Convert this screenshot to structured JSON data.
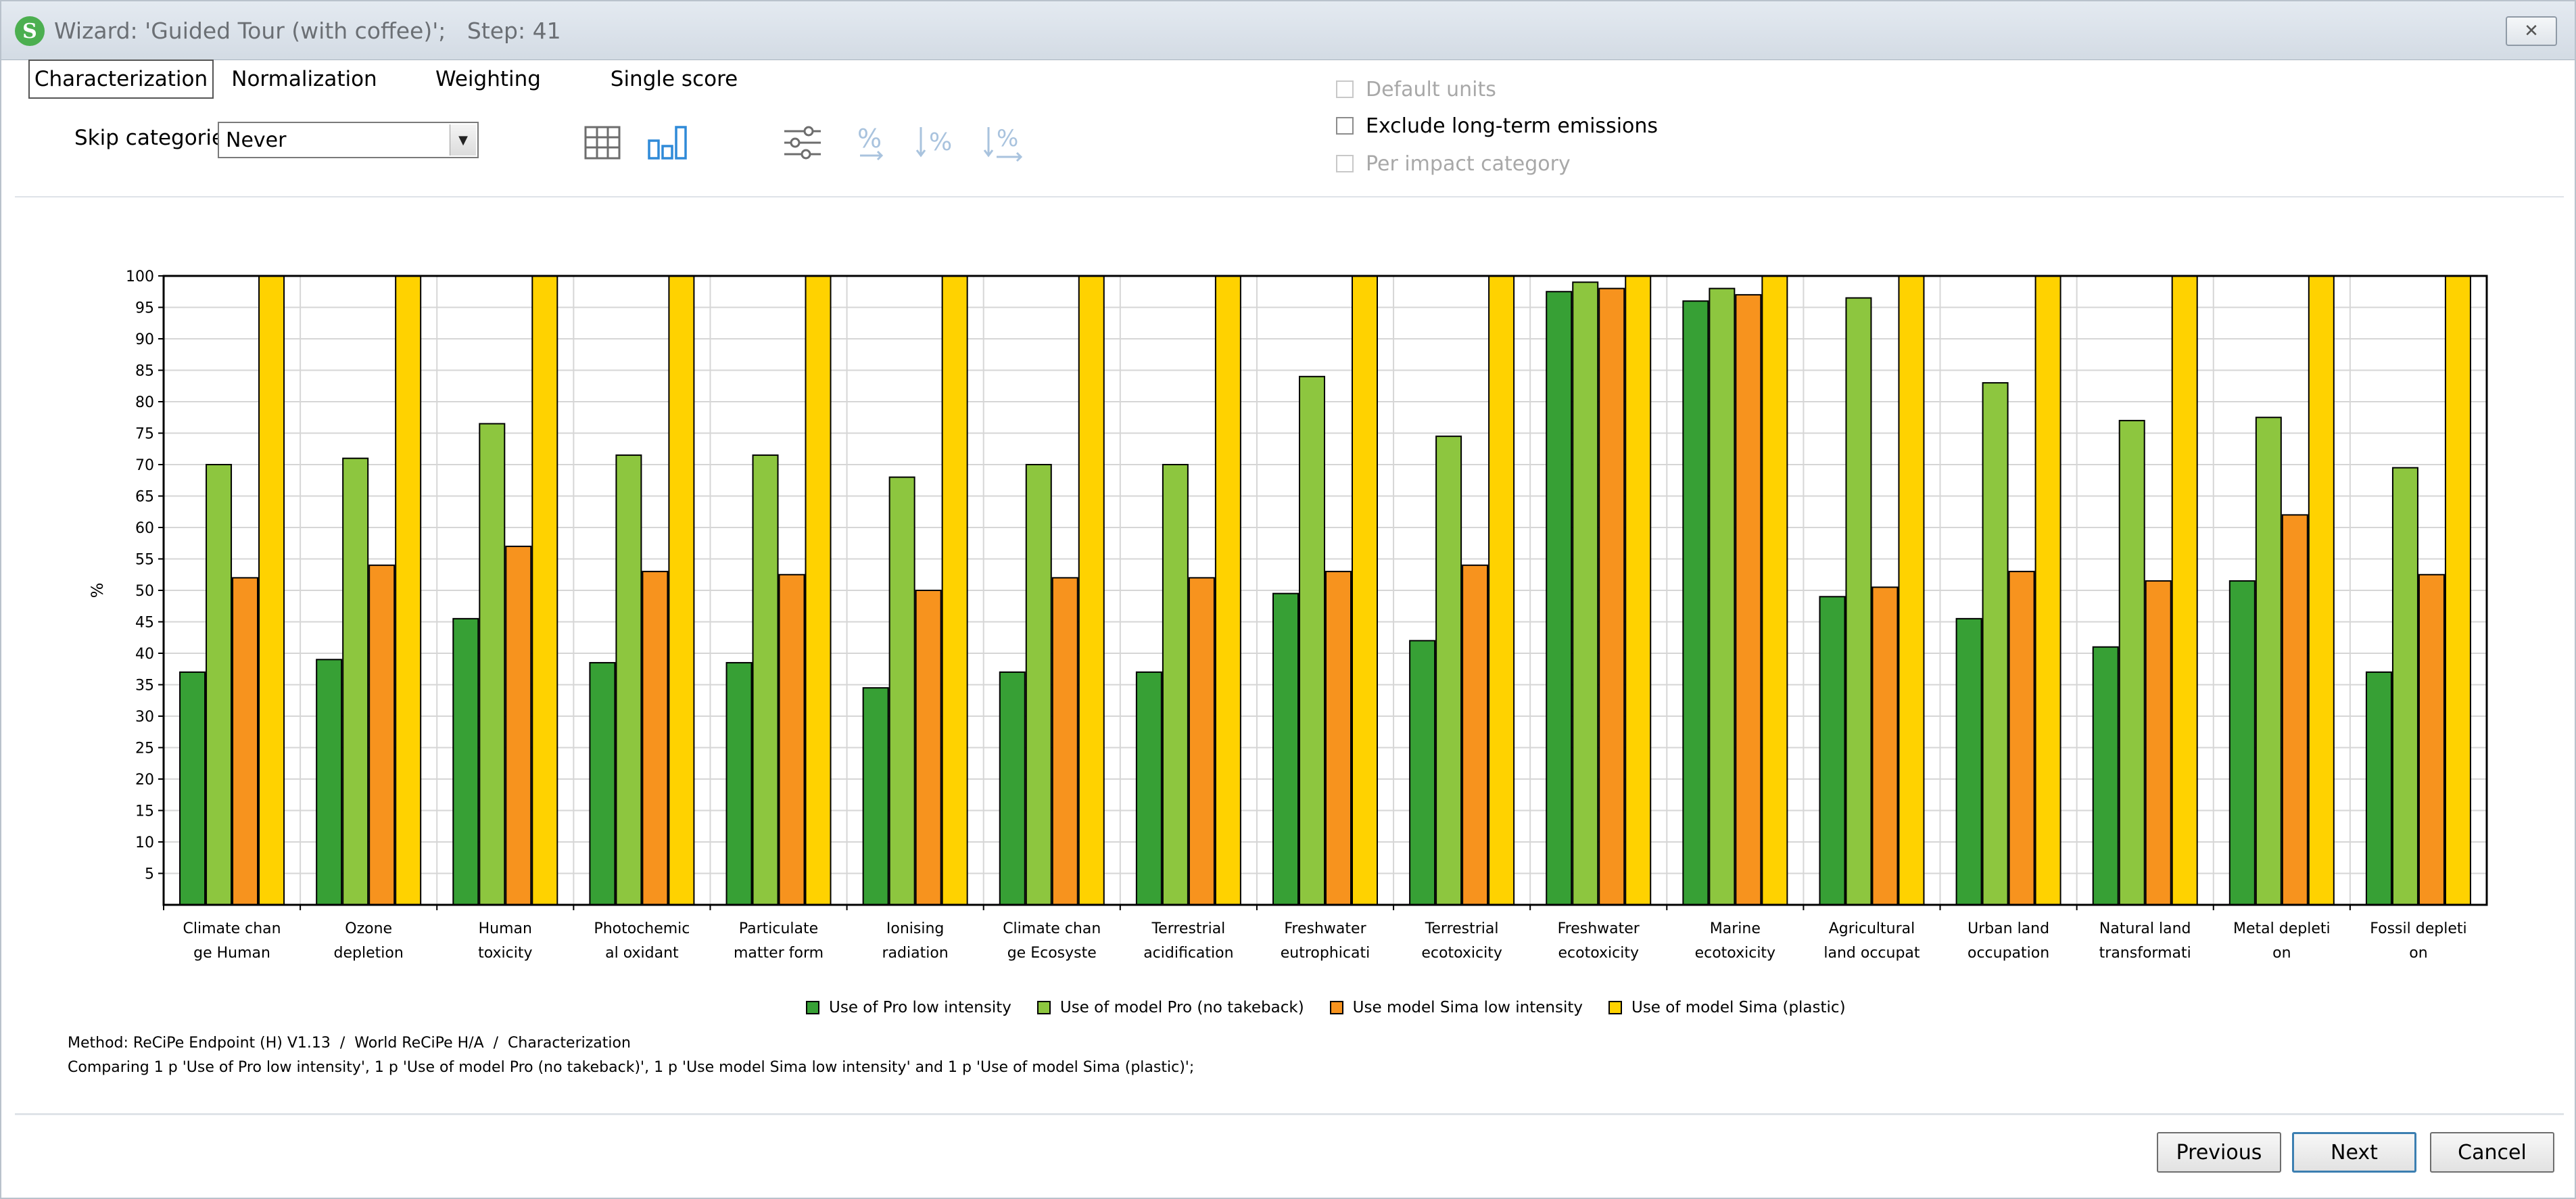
{
  "window": {
    "title": "Wizard: 'Guided Tour (with coffee)';   Step: 41",
    "app_icon_glyph": "S",
    "close_glyph": "✕"
  },
  "tabs": [
    {
      "label": "Characterization",
      "active": true
    },
    {
      "label": "Normalization",
      "active": false
    },
    {
      "label": "Weighting",
      "active": false
    },
    {
      "label": "Single score",
      "active": false
    }
  ],
  "controls": {
    "skip_label": "Skip categories",
    "skip_value": "Never",
    "toolbar_icons": [
      "table-icon",
      "bar-chart-icon",
      "sliders-icon",
      "percent-icon",
      "sort-percent-icon",
      "sort-percent-alt-icon"
    ],
    "default_units_label": "Default units",
    "exclude_long_term_label": "Exclude long-term emissions",
    "per_impact_label": "Per impact category"
  },
  "colors": {
    "s1": "#37a035",
    "s2": "#8dc63f",
    "s3": "#f7931e",
    "s4": "#ffd200",
    "grid": "#d6d6d6",
    "accent": "#3c7fb1"
  },
  "chart_data": {
    "type": "bar",
    "ylabel": "%",
    "ylim": [
      0,
      100
    ],
    "yticks": [
      5,
      10,
      15,
      20,
      25,
      30,
      35,
      40,
      45,
      50,
      55,
      60,
      65,
      70,
      75,
      80,
      85,
      90,
      95,
      100
    ],
    "grid": true,
    "legend_position": "bottom-center",
    "categories": [
      [
        "Climate chan",
        "ge Human"
      ],
      [
        "Ozone",
        "depletion"
      ],
      [
        "Human",
        "toxicity"
      ],
      [
        "Photochemic",
        "al oxidant"
      ],
      [
        "Particulate",
        "matter form"
      ],
      [
        "Ionising",
        "radiation"
      ],
      [
        "Climate chan",
        "ge Ecosyste"
      ],
      [
        "Terrestrial",
        "acidification"
      ],
      [
        "Freshwater",
        "eutrophicati"
      ],
      [
        "Terrestrial",
        "ecotoxicity"
      ],
      [
        "Freshwater",
        "ecotoxicity"
      ],
      [
        "Marine",
        "ecotoxicity"
      ],
      [
        "Agricultural",
        "land occupat"
      ],
      [
        "Urban land",
        "occupation"
      ],
      [
        "Natural land",
        "transformati"
      ],
      [
        "Metal depleti",
        "on"
      ],
      [
        "Fossil depleti",
        "on"
      ]
    ],
    "series": [
      {
        "name": "Use of Pro low intensity",
        "color": "#37a035",
        "values": [
          37,
          39,
          45.5,
          38.5,
          38.5,
          34.5,
          37,
          37,
          49.5,
          42,
          97.5,
          96,
          49,
          45.5,
          41,
          51.5,
          37
        ]
      },
      {
        "name": "Use of model Pro (no takeback)",
        "color": "#8dc63f",
        "values": [
          70,
          71,
          76.5,
          71.5,
          71.5,
          68,
          70,
          70,
          84,
          74.5,
          99,
          98,
          96.5,
          83,
          77,
          77.5,
          69.5
        ]
      },
      {
        "name": "Use model Sima low intensity",
        "color": "#f7931e",
        "values": [
          52,
          54,
          57,
          53,
          52.5,
          50,
          52,
          52,
          53,
          54,
          98,
          97,
          50.5,
          53,
          51.5,
          62,
          52.5
        ]
      },
      {
        "name": "Use of model Sima (plastic)",
        "color": "#ffd200",
        "values": [
          100,
          100,
          100,
          100,
          100,
          100,
          100,
          100,
          100,
          100,
          100,
          100,
          100,
          100,
          100,
          100,
          100
        ]
      }
    ]
  },
  "info": {
    "method_line": "Method: ReCiPe Endpoint (H) V1.13  /  World ReCiPe H/A  /  Characterization",
    "comparing_line": "Comparing 1 p 'Use of Pro low intensity', 1 p 'Use of model Pro (no takeback)', 1 p 'Use model Sima low intensity' and 1 p 'Use of model Sima (plastic)';"
  },
  "buttons": {
    "previous": "Previous",
    "next": "Next",
    "cancel": "Cancel"
  }
}
